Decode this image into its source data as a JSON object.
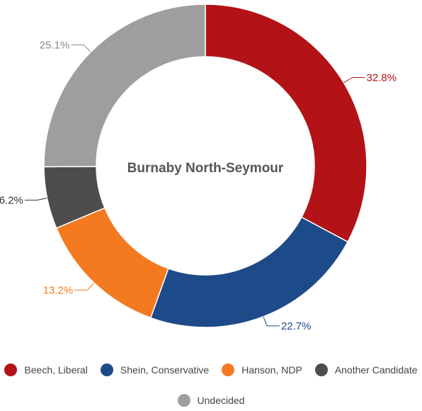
{
  "chart_data": {
    "type": "pie",
    "title": "Burnaby North-Seymour",
    "categories": [
      "Beech, Liberal",
      "Shein, Conservative",
      "Hanson, NDP",
      "Another Candidate",
      "Undecided"
    ],
    "values": [
      32.8,
      22.7,
      13.2,
      6.2,
      25.1
    ],
    "value_labels": [
      "32.8%",
      "22.7%",
      "13.2%",
      "6.2%",
      "25.1%"
    ],
    "colors": [
      "#b31217",
      "#1d4a88",
      "#f47a20",
      "#4d4d4d",
      "#9e9e9e"
    ],
    "label_colors": [
      "#b31217",
      "#1d4a88",
      "#f47a20",
      "#333333",
      "#888888"
    ],
    "legend_placement": "bottom",
    "donut": true
  }
}
